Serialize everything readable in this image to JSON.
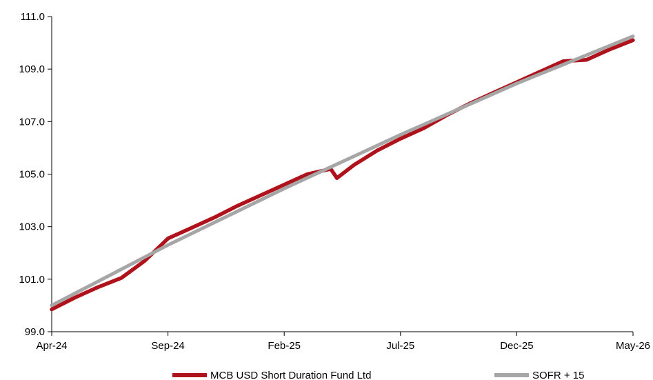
{
  "chart_data": {
    "type": "line",
    "title": "",
    "xlabel": "",
    "ylabel": "",
    "ylim": [
      99.0,
      111.0
    ],
    "yticks": [
      "99.0",
      "101.0",
      "103.0",
      "105.0",
      "107.0",
      "109.0",
      "111.0"
    ],
    "xlim": [
      "2024-04",
      "2026-05"
    ],
    "xticks": [
      {
        "label": "Apr-24",
        "month": "2024-04"
      },
      {
        "label": "Sep-24",
        "month": "2024-09"
      },
      {
        "label": "Feb-25",
        "month": "2025-02"
      },
      {
        "label": "Jul-25",
        "month": "2025-07"
      },
      {
        "label": "Dec-25",
        "month": "2025-12"
      },
      {
        "label": "May-26",
        "month": "2026-05"
      }
    ],
    "grid": false,
    "legend_position": "bottom",
    "series": [
      {
        "name": "MCB USD Short Duration Fund Ltd",
        "color": "#b0121b",
        "points": [
          [
            "2024-04",
            99.85
          ],
          [
            "2024-05",
            100.3
          ],
          [
            "2024-06",
            100.7
          ],
          [
            "2024-07",
            101.05
          ],
          [
            "2024-08",
            101.7
          ],
          [
            "2024-09",
            102.55
          ],
          [
            "2024-10",
            102.95
          ],
          [
            "2024-11",
            103.35
          ],
          [
            "2024-12",
            103.8
          ],
          [
            "2025-01",
            104.2
          ],
          [
            "2025-02",
            104.6
          ],
          [
            "2025-03",
            105.0
          ],
          [
            "2025-04",
            105.2
          ],
          [
            "2025-04-09",
            104.85
          ],
          [
            "2025-05",
            105.35
          ],
          [
            "2025-06",
            105.9
          ],
          [
            "2025-07",
            106.35
          ],
          [
            "2025-08",
            106.75
          ],
          [
            "2025-09",
            107.25
          ],
          [
            "2025-10",
            107.7
          ],
          [
            "2025-11",
            108.1
          ],
          [
            "2025-12",
            108.5
          ],
          [
            "2026-01",
            108.9
          ],
          [
            "2026-02",
            109.3
          ],
          [
            "2026-03",
            109.35
          ],
          [
            "2026-04",
            109.75
          ],
          [
            "2026-05",
            110.1
          ]
        ]
      },
      {
        "name": "SOFR + 15",
        "color": "#a6a6a6",
        "points": [
          [
            "2024-04",
            100.0
          ],
          [
            "2024-09",
            102.3
          ],
          [
            "2025-02",
            104.45
          ],
          [
            "2025-07",
            106.5
          ],
          [
            "2025-12",
            108.45
          ],
          [
            "2026-05",
            110.25
          ]
        ]
      }
    ]
  }
}
